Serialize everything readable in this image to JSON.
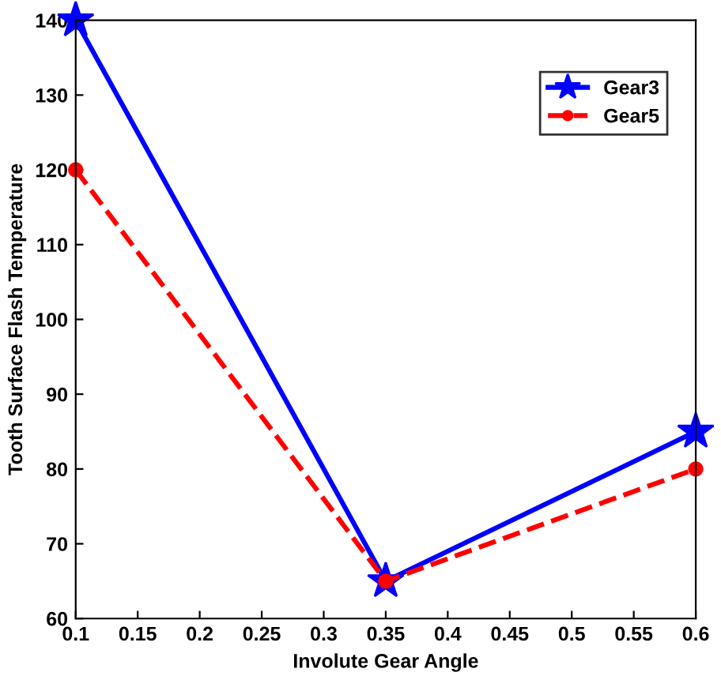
{
  "chart_data": {
    "type": "line",
    "xlabel": "Involute Gear Angle",
    "ylabel": "Tooth Surface Flash Temperature",
    "x": [
      0.1,
      0.35,
      0.6
    ],
    "series": [
      {
        "name": "Gear3",
        "color": "#0000ff",
        "values": [
          140,
          65,
          85
        ],
        "marker": "star",
        "line_style": "solid"
      },
      {
        "name": "Gear5",
        "color": "#ff0000",
        "values": [
          120,
          65,
          80
        ],
        "marker": "circle",
        "line_style": "dashed"
      }
    ],
    "xlim": [
      0.1,
      0.6
    ],
    "xticks": [
      0.1,
      0.15,
      0.2,
      0.25,
      0.3,
      0.35,
      0.4,
      0.45,
      0.5,
      0.55,
      0.6
    ],
    "ylim": [
      60,
      140
    ],
    "yticks": [
      60,
      70,
      80,
      90,
      100,
      110,
      120,
      130,
      140
    ],
    "grid": false,
    "legend": "top right"
  }
}
